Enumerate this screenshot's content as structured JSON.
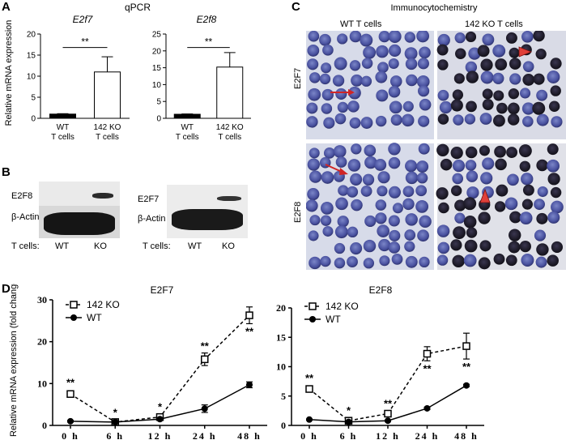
{
  "panels": {
    "a": "A",
    "b": "B",
    "c": "C",
    "d": "D"
  },
  "panel_a": {
    "title": "qPCR",
    "ylabel": "Relative mRNA expression",
    "sig": "**",
    "charts": [
      {
        "title": "E2f7"
      },
      {
        "title": "E2f8"
      }
    ]
  },
  "panel_b": {
    "blots": [
      {
        "band_top": "E2F8",
        "band_bottom": "β-Actin",
        "row_label": "T cells:",
        "lane1": "WT",
        "lane2": "KO"
      },
      {
        "band_top": "E2F7",
        "band_bottom": "β-Actin",
        "row_label": "T cells:",
        "lane1": "WT",
        "lane2": "KO"
      }
    ]
  },
  "panel_c": {
    "title": "Immunocytochemistry",
    "col1": "WT T cells",
    "col2": "142 KO T cells",
    "row1": "E2F7",
    "row2": "E2F8"
  },
  "panel_d": {
    "ylabel": "Relative mRNA expression (fold change)",
    "legend": [
      "142 KO",
      "WT"
    ]
  },
  "chart_data": [
    {
      "type": "bar",
      "title": "E2f7",
      "ylabel": "Relative mRNA expression",
      "categories": [
        "WT T cells",
        "142 KO T cells"
      ],
      "values": [
        1.0,
        11.0
      ],
      "errors": [
        0.1,
        3.6
      ],
      "ylim": [
        0,
        20
      ],
      "yticks": [
        0,
        5,
        10,
        15,
        20
      ],
      "significance": "**",
      "grid": false
    },
    {
      "type": "bar",
      "title": "E2f8",
      "ylabel": "",
      "categories": [
        "WT T cells",
        "142 KO T cells"
      ],
      "values": [
        1.2,
        15.2
      ],
      "errors": [
        0.1,
        4.3
      ],
      "ylim": [
        0,
        25
      ],
      "yticks": [
        0,
        5,
        10,
        15,
        20,
        25
      ],
      "significance": "**",
      "grid": false
    },
    {
      "type": "line",
      "title": "E2F7",
      "ylabel": "Relative mRNA expression (fold change)",
      "x": [
        "0 h",
        "6 h",
        "12 h",
        "24 h",
        "48 h"
      ],
      "ylim": [
        0,
        30
      ],
      "yticks": [
        0,
        10,
        20,
        30
      ],
      "legend": "top-left",
      "series": [
        {
          "name": "142 KO",
          "values": [
            7.5,
            0.8,
            2.0,
            15.8,
            26.3
          ],
          "errors": [
            0.7,
            0.3,
            0.4,
            1.5,
            2.0
          ],
          "marker": "open-square",
          "dash": true,
          "sig": [
            "**",
            "*",
            "*",
            "**",
            "**"
          ]
        },
        {
          "name": "WT",
          "values": [
            1.0,
            0.8,
            1.5,
            4.0,
            9.7
          ],
          "errors": [
            0.2,
            0.2,
            0.3,
            0.9,
            0.7
          ],
          "marker": "filled-circle",
          "dash": false
        }
      ]
    },
    {
      "type": "line",
      "title": "E2F8",
      "ylabel": "",
      "x": [
        "0 h",
        "6 h",
        "12 h",
        "24 h",
        "48 h"
      ],
      "ylim": [
        0,
        20
      ],
      "yticks": [
        0,
        5,
        10,
        15,
        20
      ],
      "legend": "top-left",
      "series": [
        {
          "name": "142 KO",
          "values": [
            6.2,
            0.8,
            2.0,
            12.2,
            13.5
          ],
          "errors": [
            0.4,
            0.3,
            0.3,
            1.2,
            2.2
          ],
          "marker": "open-square",
          "dash": true,
          "sig": [
            "**",
            "*",
            "**",
            "**",
            "**"
          ]
        },
        {
          "name": "WT",
          "values": [
            1.0,
            0.6,
            0.8,
            2.9,
            6.8
          ],
          "errors": [
            0.1,
            0.1,
            0.1,
            0.2,
            0.2
          ],
          "marker": "filled-circle",
          "dash": false
        }
      ]
    }
  ]
}
